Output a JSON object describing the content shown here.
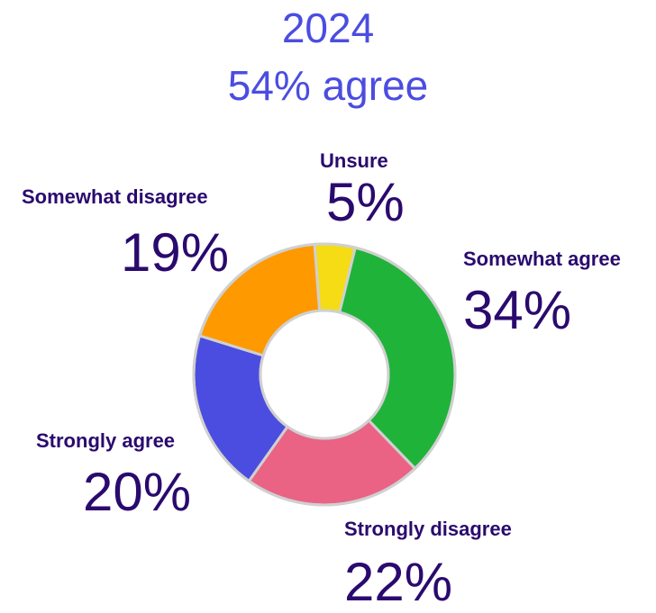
{
  "title": {
    "line1": "2024",
    "line2": "54% agree"
  },
  "colors": {
    "title": "#4B4DE0",
    "label": "#2A0A6E",
    "unsure": "#F5DC14",
    "somewhat_agree": "#1FB33A",
    "strongly_disagree": "#EA6384",
    "strongly_agree": "#4B4DE0",
    "somewhat_disagree": "#FF9900",
    "border": "#d0d0d0"
  },
  "chart_data": {
    "type": "pie",
    "title": "2024 54% agree",
    "donut": true,
    "slices": [
      {
        "label": "Unsure",
        "value": 5,
        "display": "5%",
        "color": "#F5DC14"
      },
      {
        "label": "Somewhat agree",
        "value": 34,
        "display": "34%",
        "color": "#1FB33A"
      },
      {
        "label": "Strongly disagree",
        "value": 22,
        "display": "22%",
        "color": "#EA6384"
      },
      {
        "label": "Strongly agree",
        "value": 20,
        "display": "20%",
        "color": "#4B4DE0"
      },
      {
        "label": "Somewhat disagree",
        "value": 19,
        "display": "19%",
        "color": "#FF9900"
      }
    ]
  }
}
